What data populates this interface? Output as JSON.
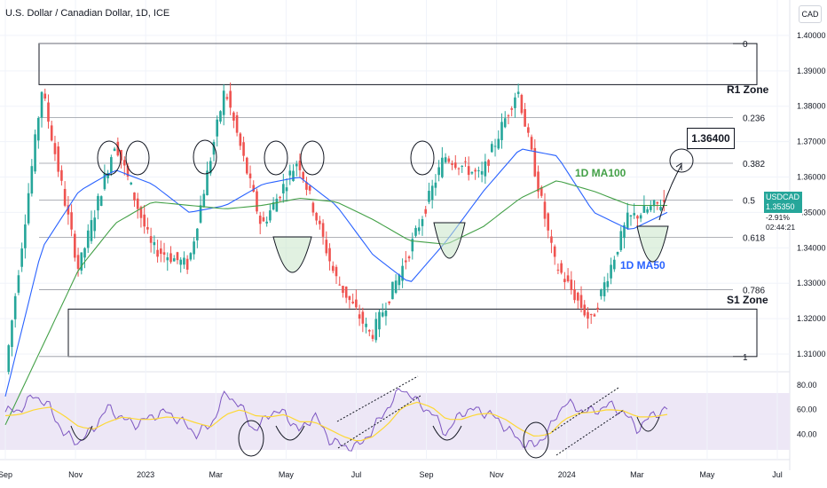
{
  "header": {
    "title": "U.S. Dollar / Canadian Dollar, 1D, ICE",
    "currency": "CAD"
  },
  "price_tag": {
    "symbol": "USDCAD",
    "price": "1.35350",
    "change": "-2.91%",
    "countdown": "02:44:21"
  },
  "annotations": {
    "target_label": "1.36400",
    "r1_zone": "R1 Zone",
    "s1_zone": "S1 Zone",
    "ma100_label": "1D MA100",
    "ma50_label": "1D MA50"
  },
  "colors": {
    "bull": "#26a69a",
    "bear": "#ef5350",
    "ma50": "#2962ff",
    "ma100": "#43a047",
    "rsi": "#7e57c2",
    "rsi_ma": "#fdd835",
    "rsi_band": "#ede7f6",
    "fib_line": "#9598a1"
  },
  "chart_data": [
    {
      "type": "line",
      "title": "U.S. Dollar / Canadian Dollar, 1D, ICE",
      "x_tick_labels": [
        "Sep",
        "Nov",
        "2023",
        "Mar",
        "May",
        "Jul",
        "Sep",
        "Nov",
        "2024",
        "Mar",
        "May",
        "Jul"
      ],
      "y_tick_labels": [
        "1.40000",
        "1.39000",
        "1.38000",
        "1.37000",
        "1.36000",
        "1.35000",
        "1.34000",
        "1.33000",
        "1.32000",
        "1.31000"
      ],
      "ylim": [
        1.306,
        1.408
      ],
      "fib_levels": [
        {
          "label": "0",
          "value": 1.3977
        },
        {
          "label": "0.236",
          "value": 1.3768
        },
        {
          "label": "0.382",
          "value": 1.3639
        },
        {
          "label": "0.5",
          "value": 1.3535
        },
        {
          "label": "0.618",
          "value": 1.343
        },
        {
          "label": "0.786",
          "value": 1.3282
        },
        {
          "label": "1",
          "value": 1.3093
        }
      ],
      "zones": [
        {
          "name": "R1 Zone",
          "from": 1.3861,
          "to": 1.3977
        },
        {
          "name": "S1 Zone",
          "from": 1.3093,
          "to": 1.3227
        }
      ],
      "target": 1.364,
      "series": [
        {
          "name": "USDCAD",
          "x": [
            "Sep",
            "Oct",
            "Nov",
            "Dec",
            "2023",
            "Feb",
            "Mar",
            "Apr",
            "May",
            "Jun",
            "Jul",
            "Aug",
            "Sep",
            "Oct",
            "Nov",
            "Dec",
            "2024",
            "Feb",
            "Mar"
          ],
          "values": [
            1.305,
            1.385,
            1.334,
            1.37,
            1.34,
            1.335,
            1.385,
            1.346,
            1.365,
            1.332,
            1.315,
            1.338,
            1.366,
            1.36,
            1.385,
            1.336,
            1.319,
            1.348,
            1.353
          ]
        },
        {
          "name": "1D MA50",
          "x": [
            "Sep",
            "Oct",
            "Nov",
            "Dec",
            "2023",
            "Feb",
            "Mar",
            "Apr",
            "May",
            "Jun",
            "Jul",
            "Aug",
            "Sep",
            "Oct",
            "Nov",
            "Dec",
            "2024",
            "Feb",
            "Mar"
          ],
          "values": [
            1.298,
            1.34,
            1.356,
            1.362,
            1.358,
            1.35,
            1.352,
            1.358,
            1.36,
            1.352,
            1.338,
            1.33,
            1.342,
            1.356,
            1.368,
            1.366,
            1.35,
            1.345,
            1.35
          ]
        },
        {
          "name": "1D MA100",
          "x": [
            "Sep",
            "Oct",
            "Nov",
            "Dec",
            "2023",
            "Feb",
            "Mar",
            "Apr",
            "May",
            "Jun",
            "Jul",
            "Aug",
            "Sep",
            "Oct",
            "Nov",
            "Dec",
            "2024",
            "Feb",
            "Mar"
          ],
          "values": [
            1.29,
            1.312,
            1.334,
            1.347,
            1.353,
            1.352,
            1.351,
            1.352,
            1.354,
            1.353,
            1.348,
            1.342,
            1.341,
            1.346,
            1.354,
            1.359,
            1.356,
            1.352,
            1.352
          ]
        }
      ]
    },
    {
      "type": "line",
      "title": "",
      "y_tick_labels": [
        "80.00",
        "60.00",
        "40.00"
      ],
      "ylim": [
        20,
        90
      ],
      "band": [
        30,
        70
      ],
      "series": [
        {
          "name": "",
          "values": [
            58,
            60,
            72,
            62,
            40,
            33,
            45,
            62,
            52,
            48,
            55,
            58,
            50,
            40,
            48,
            74,
            62,
            42,
            58,
            57,
            42,
            56,
            36,
            30,
            30,
            44,
            62,
            78,
            66,
            57,
            40,
            58,
            60,
            56,
            46,
            34,
            30,
            44,
            66,
            60,
            58,
            64,
            58,
            44,
            56,
            60
          ]
        },
        {
          "name": "",
          "values": [
            55,
            56,
            60,
            62,
            55,
            46,
            44,
            50,
            54,
            52,
            52,
            54,
            53,
            49,
            46,
            56,
            60,
            55,
            54,
            56,
            50,
            50,
            44,
            38,
            34,
            38,
            48,
            62,
            66,
            62,
            52,
            52,
            56,
            57,
            52,
            44,
            38,
            40,
            52,
            57,
            58,
            60,
            59,
            54,
            54,
            56
          ]
        }
      ]
    }
  ]
}
